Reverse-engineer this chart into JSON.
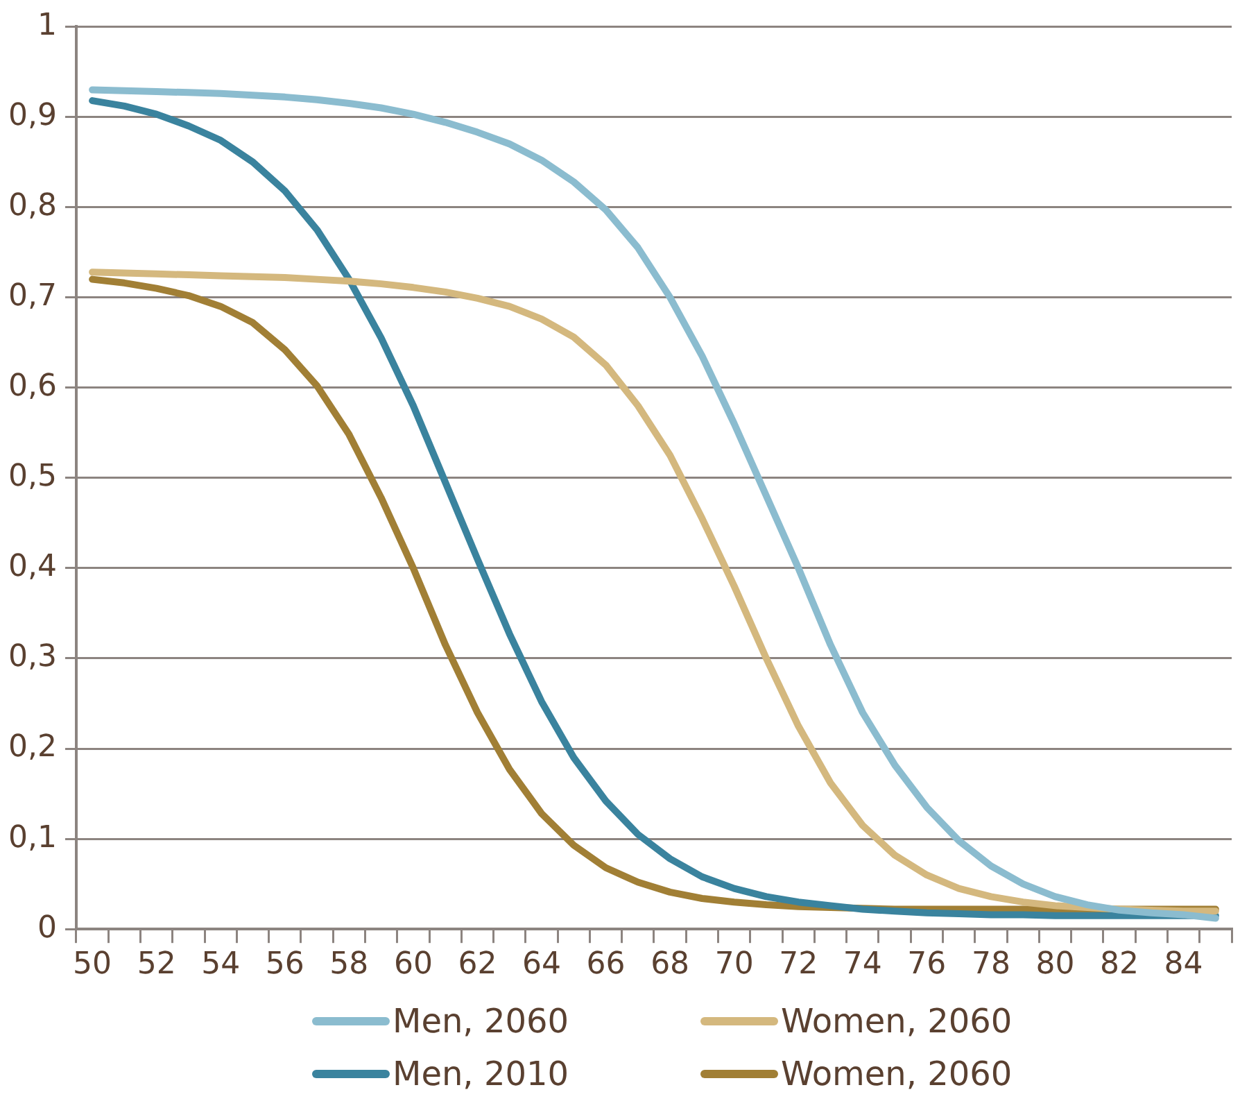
{
  "chart_data": {
    "type": "line",
    "categories": [
      "50",
      null,
      "52",
      null,
      "54",
      null,
      "56",
      null,
      "58",
      null,
      "60",
      null,
      "62",
      null,
      "64",
      null,
      "66",
      null,
      "68",
      null,
      "70",
      null,
      "72",
      null,
      "74",
      null,
      "76",
      null,
      "78",
      null,
      "80",
      null,
      "82",
      null,
      "84",
      null
    ],
    "series": [
      {
        "name": "Men, 2060",
        "color": "#8bbccf",
        "values": [
          0.93,
          0.929,
          0.928,
          0.927,
          0.926,
          0.924,
          0.922,
          0.919,
          0.915,
          0.91,
          0.903,
          0.894,
          0.883,
          0.87,
          0.852,
          0.828,
          0.797,
          0.755,
          0.7,
          0.635,
          0.56,
          0.48,
          0.4,
          0.315,
          0.24,
          0.182,
          0.135,
          0.098,
          0.07,
          0.05,
          0.036,
          0.027,
          0.021,
          0.018,
          0.016,
          0.012
        ]
      },
      {
        "name": "Women, 2060",
        "color": "#d4b87e",
        "values": [
          0.728,
          0.727,
          0.726,
          0.725,
          0.724,
          0.723,
          0.722,
          0.72,
          0.718,
          0.715,
          0.711,
          0.706,
          0.699,
          0.69,
          0.676,
          0.656,
          0.625,
          0.58,
          0.525,
          0.455,
          0.38,
          0.3,
          0.225,
          0.162,
          0.115,
          0.082,
          0.06,
          0.045,
          0.036,
          0.03,
          0.026,
          0.024,
          0.022,
          0.021,
          0.02,
          0.02
        ]
      },
      {
        "name": "Men, 2010",
        "color": "#3a839e",
        "values": [
          0.918,
          0.912,
          0.903,
          0.89,
          0.874,
          0.85,
          0.818,
          0.775,
          0.72,
          0.655,
          0.58,
          0.495,
          0.41,
          0.327,
          0.252,
          0.19,
          0.142,
          0.105,
          0.078,
          0.058,
          0.045,
          0.036,
          0.03,
          0.026,
          0.022,
          0.02,
          0.018,
          0.017,
          0.016,
          0.016,
          0.015,
          0.015,
          0.015,
          0.015,
          0.015,
          0.015
        ]
      },
      {
        "name": "Women, 2060",
        "color": "#a17f35",
        "values": [
          0.72,
          0.716,
          0.71,
          0.702,
          0.69,
          0.672,
          0.642,
          0.602,
          0.548,
          0.478,
          0.4,
          0.315,
          0.24,
          0.177,
          0.128,
          0.093,
          0.068,
          0.052,
          0.041,
          0.034,
          0.03,
          0.027,
          0.025,
          0.024,
          0.023,
          0.022,
          0.022,
          0.022,
          0.022,
          0.022,
          0.022,
          0.022,
          0.022,
          0.022,
          0.022,
          0.022
        ]
      }
    ],
    "ylim": [
      0,
      1
    ],
    "yticks": [
      0,
      {
        "value": 0.1,
        "label": "0,1"
      },
      {
        "value": 0.2,
        "label": "0,2"
      },
      {
        "value": 0.3,
        "label": "0,3"
      },
      {
        "value": 0.4,
        "label": "0,4"
      },
      {
        "value": 0.5,
        "label": "0,5"
      },
      {
        "value": 0.6,
        "label": "0,6"
      },
      {
        "value": 0.7,
        "label": "0,7"
      },
      {
        "value": 0.8,
        "label": "0,8"
      },
      {
        "value": 0.9,
        "label": "0,9"
      },
      1
    ],
    "grid": "y",
    "legend": "bottom",
    "marker": "none",
    "line_style": "solid"
  }
}
